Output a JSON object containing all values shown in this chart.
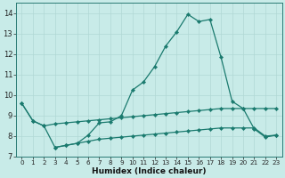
{
  "xlabel": "Humidex (Indice chaleur)",
  "background_color": "#c8ebe8",
  "grid_color": "#b0d8d4",
  "line_color": "#1a7a6e",
  "xlim": [
    -0.5,
    23.5
  ],
  "ylim": [
    7.0,
    14.5
  ],
  "yticks": [
    7,
    8,
    9,
    10,
    11,
    12,
    13,
    14
  ],
  "xticks": [
    0,
    1,
    2,
    3,
    4,
    5,
    6,
    7,
    8,
    9,
    10,
    11,
    12,
    13,
    14,
    15,
    16,
    17,
    18,
    19,
    20,
    21,
    22,
    23
  ],
  "line1_x": [
    0,
    1,
    2,
    3,
    4,
    5,
    6,
    7,
    8,
    9,
    10,
    11,
    12,
    13,
    14,
    15,
    16,
    17,
    18,
    19,
    20,
    21,
    22,
    23
  ],
  "line1_y": [
    9.6,
    8.75,
    8.5,
    7.45,
    7.55,
    7.65,
    8.05,
    8.65,
    8.7,
    9.0,
    10.25,
    10.65,
    11.4,
    12.4,
    13.1,
    13.95,
    13.6,
    13.7,
    11.85,
    9.7,
    9.35,
    8.35,
    7.95,
    8.05
  ],
  "line2_x": [
    0,
    1,
    2,
    3,
    4,
    5,
    6,
    7,
    8,
    9,
    10,
    11,
    12,
    13,
    14,
    15,
    16,
    17,
    18,
    19,
    20,
    21,
    22,
    23
  ],
  "line2_y": [
    9.6,
    8.75,
    8.5,
    8.6,
    8.65,
    8.7,
    8.75,
    8.8,
    8.85,
    8.9,
    8.95,
    9.0,
    9.05,
    9.1,
    9.15,
    9.2,
    9.25,
    9.3,
    9.35,
    9.35,
    9.35,
    9.35,
    9.35,
    9.35
  ],
  "line3_x": [
    3,
    4,
    5,
    6,
    7,
    8,
    9,
    10,
    11,
    12,
    13,
    14,
    15,
    16,
    17,
    18,
    19,
    20,
    21,
    22,
    23
  ],
  "line3_y": [
    7.45,
    7.55,
    7.65,
    7.75,
    7.85,
    7.9,
    7.95,
    8.0,
    8.05,
    8.1,
    8.15,
    8.2,
    8.25,
    8.3,
    8.35,
    8.4,
    8.4,
    8.4,
    8.4,
    8.0,
    8.05
  ]
}
